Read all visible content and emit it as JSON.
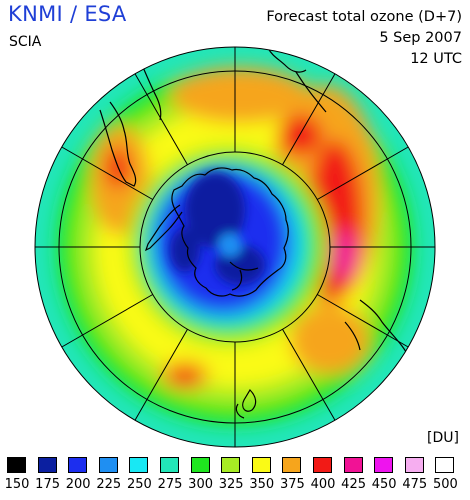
{
  "header": {
    "provider": "KNMI / ESA",
    "instrument": "SCIA",
    "product_title": "Forecast total ozone (D+7)",
    "date": "5 Sep 2007",
    "time": "12 UTC"
  },
  "map": {
    "projection": "south-polar-stereographic",
    "subject": "total-ozone-forecast",
    "features": [
      "ozone-hole-region",
      "antarctica-coastline",
      "south-america-tip",
      "australia-coastline",
      "new-zealand-coastline",
      "latitude-circles",
      "longitude-meridians"
    ]
  },
  "legend": {
    "unit": "[DU]",
    "items": [
      {
        "value": "150",
        "color": "#000000"
      },
      {
        "value": "175",
        "color": "#0b1fa0"
      },
      {
        "value": "200",
        "color": "#1c2eef"
      },
      {
        "value": "225",
        "color": "#1f8ff2"
      },
      {
        "value": "250",
        "color": "#18e8f4"
      },
      {
        "value": "275",
        "color": "#22e6b8"
      },
      {
        "value": "300",
        "color": "#1fe61f"
      },
      {
        "value": "325",
        "color": "#a7ec24"
      },
      {
        "value": "350",
        "color": "#fafa16"
      },
      {
        "value": "375",
        "color": "#f6a51c"
      },
      {
        "value": "400",
        "color": "#f21a16"
      },
      {
        "value": "425",
        "color": "#f11295"
      },
      {
        "value": "450",
        "color": "#ee14ee"
      },
      {
        "value": "475",
        "color": "#f6aef0"
      },
      {
        "value": "500",
        "color": "#ffffff"
      }
    ]
  }
}
